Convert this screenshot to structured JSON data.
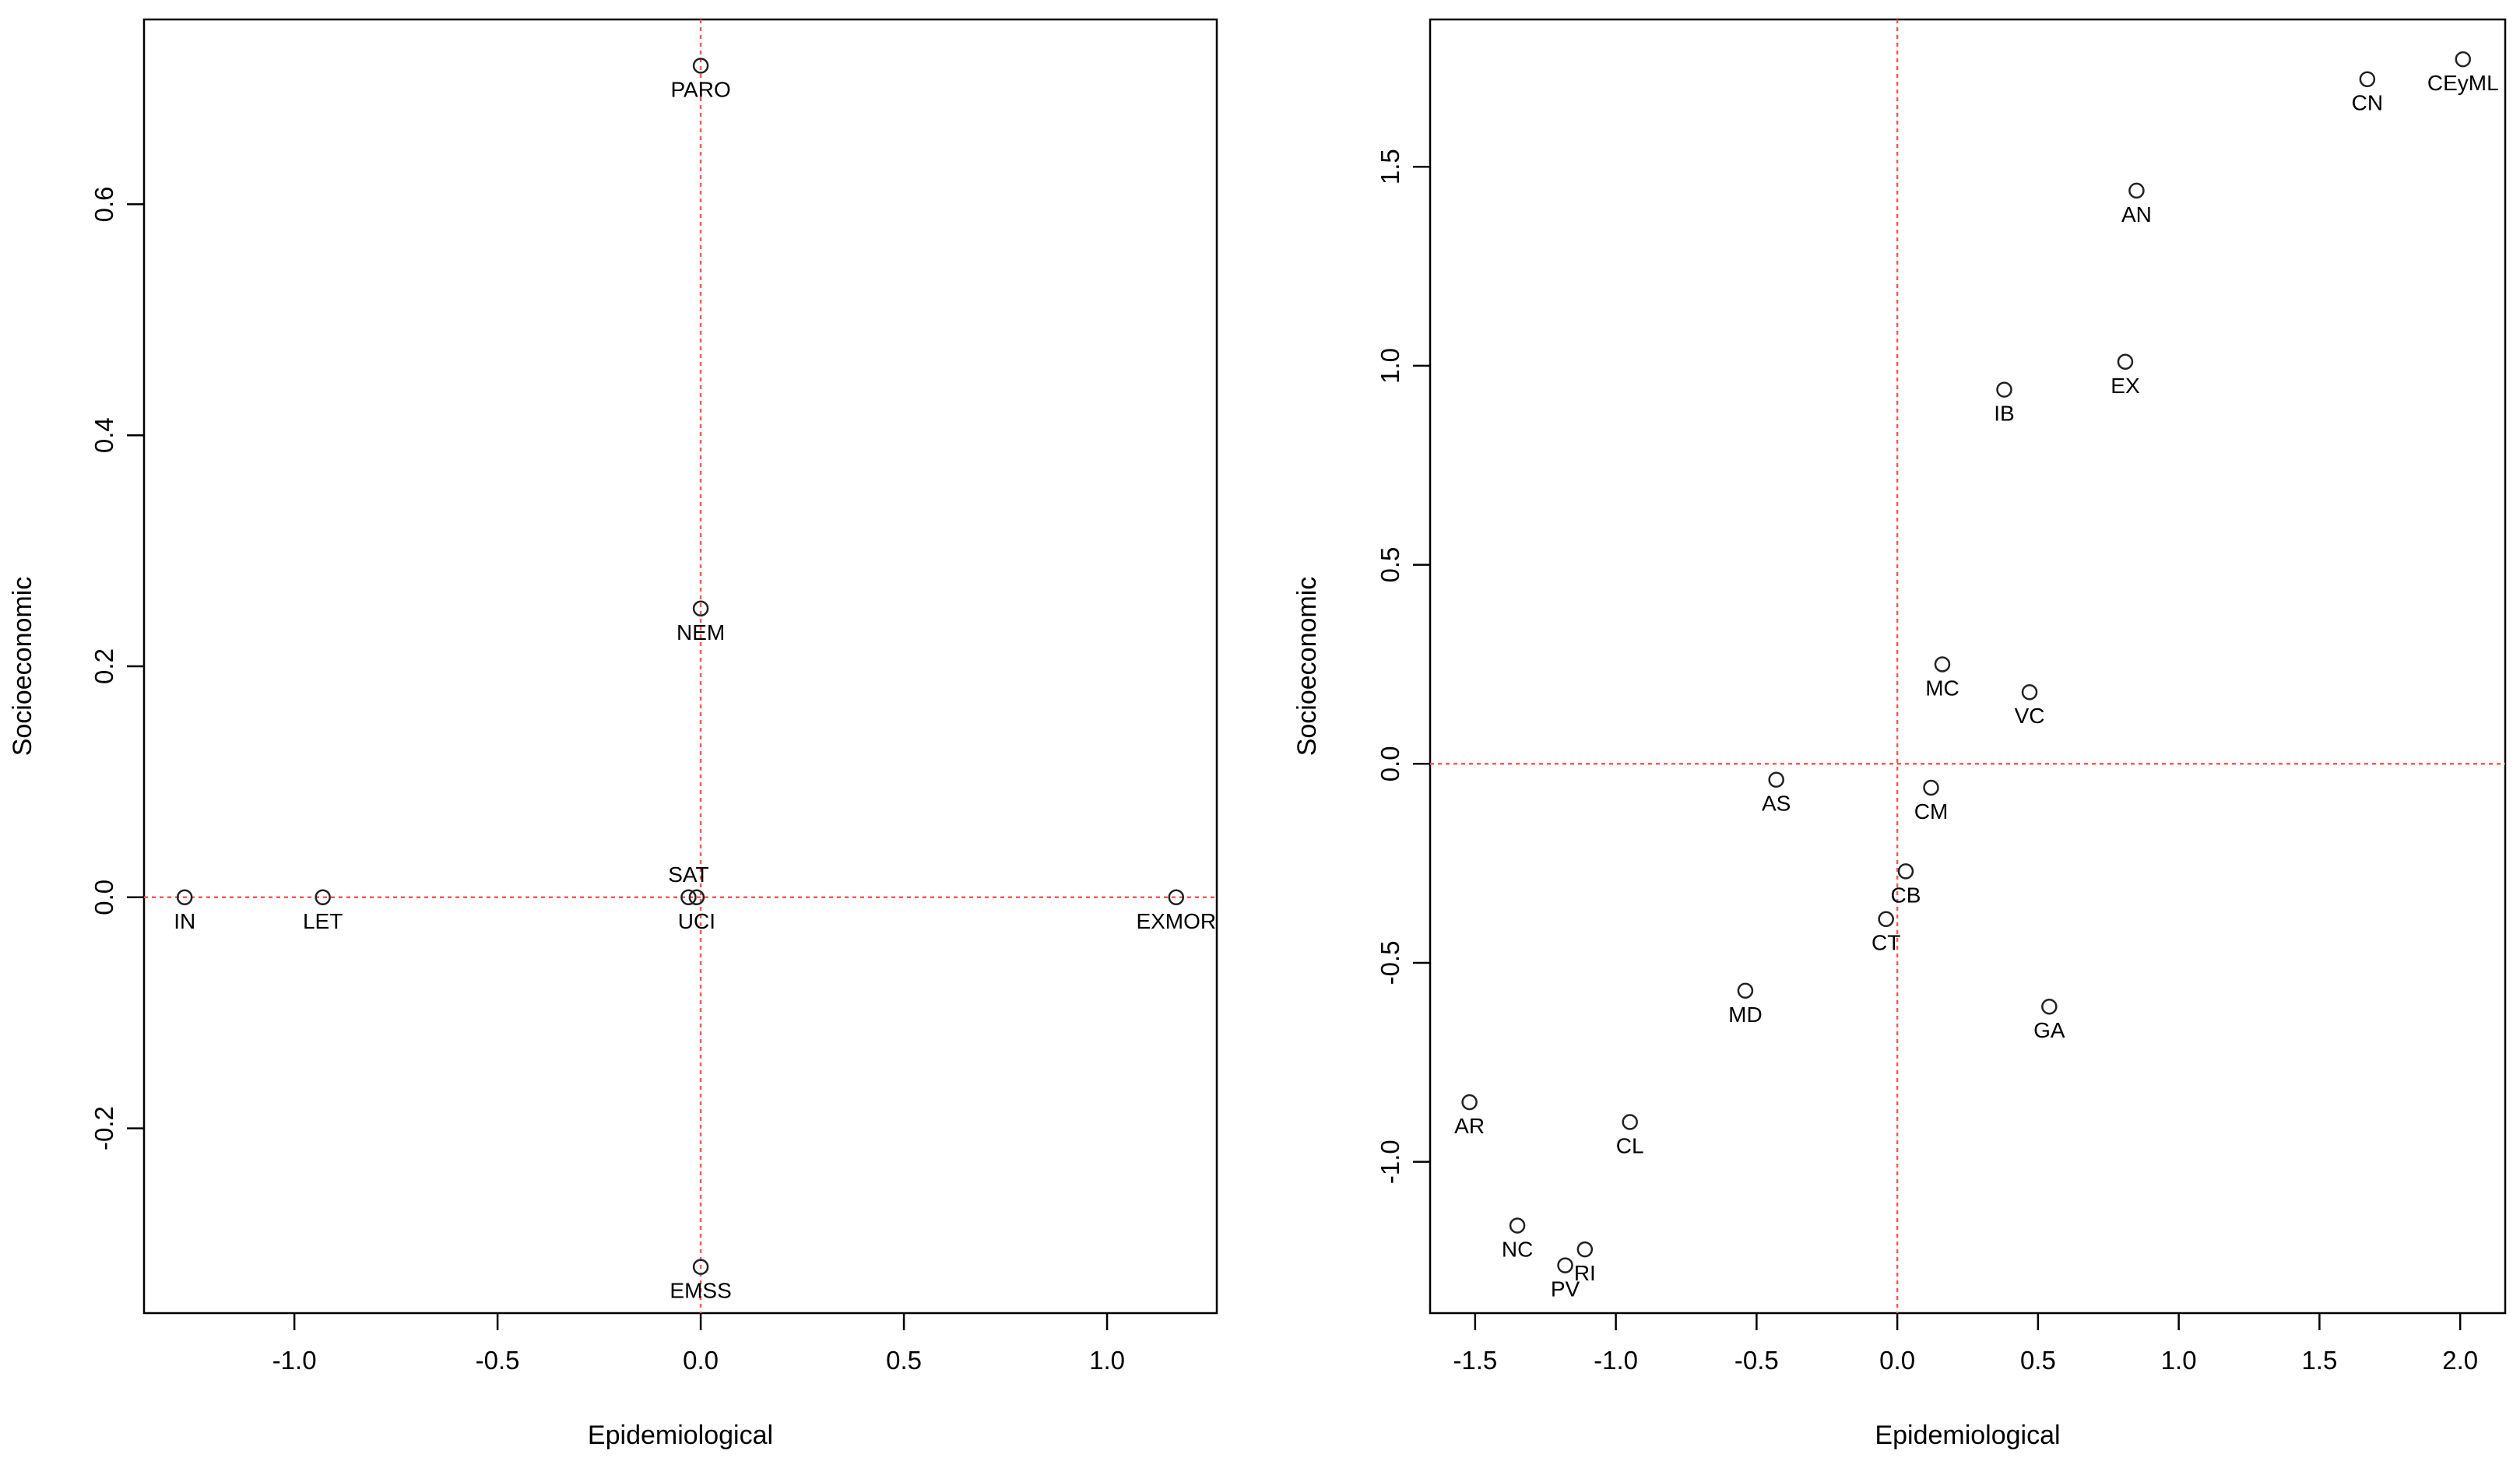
{
  "chart_data": [
    {
      "type": "scatter",
      "xlabel": "Epidemiological",
      "ylabel": "Socioeconomic",
      "xlim": [
        -1.37,
        1.27
      ],
      "ylim": [
        -0.36,
        0.76
      ],
      "xticks": [
        -1.0,
        -0.5,
        0.0,
        0.5,
        1.0
      ],
      "yticks": [
        -0.2,
        0.0,
        0.2,
        0.4,
        0.6
      ],
      "xtick_labels": [
        "-1.0",
        "-0.5",
        "0.0",
        "0.5",
        "1.0"
      ],
      "ytick_labels": [
        "-0.2",
        "0.0",
        "0.2",
        "0.4",
        "0.6"
      ],
      "reference_lines": {
        "x": 0,
        "y": 0
      },
      "points": [
        {
          "label": "PARO",
          "x": 0.0,
          "y": 0.72
        },
        {
          "label": "NEM",
          "x": 0.0,
          "y": 0.25
        },
        {
          "label": "SAT",
          "x": -0.03,
          "y": 0.0,
          "label_pos": "above"
        },
        {
          "label": "UCI",
          "x": -0.01,
          "y": 0.0
        },
        {
          "label": "IN",
          "x": -1.27,
          "y": 0.0
        },
        {
          "label": "LET",
          "x": -0.93,
          "y": 0.0
        },
        {
          "label": "EXMOR",
          "x": 1.17,
          "y": 0.0
        },
        {
          "label": "EMSS",
          "x": 0.0,
          "y": -0.32
        }
      ]
    },
    {
      "type": "scatter",
      "xlabel": "Epidemiological",
      "ylabel": "Socioeconomic",
      "xlim": [
        -1.66,
        2.16
      ],
      "ylim": [
        -1.38,
        1.87
      ],
      "xticks": [
        -1.5,
        -1.0,
        -0.5,
        0.0,
        0.5,
        1.0,
        1.5,
        2.0
      ],
      "yticks": [
        -1.0,
        -0.5,
        0.0,
        0.5,
        1.0,
        1.5
      ],
      "xtick_labels": [
        "-1.5",
        "-1.0",
        "-0.5",
        "0.0",
        "0.5",
        "1.0",
        "1.5",
        "2.0"
      ],
      "ytick_labels": [
        "-1.0",
        "-0.5",
        "0.0",
        "0.5",
        "1.0",
        "1.5"
      ],
      "reference_lines": {
        "x": 0,
        "y": 0
      },
      "points": [
        {
          "label": "CEyML",
          "x": 2.01,
          "y": 1.77
        },
        {
          "label": "CN",
          "x": 1.67,
          "y": 1.72
        },
        {
          "label": "AN",
          "x": 0.85,
          "y": 1.44
        },
        {
          "label": "EX",
          "x": 0.81,
          "y": 1.01
        },
        {
          "label": "IB",
          "x": 0.38,
          "y": 0.94
        },
        {
          "label": "MC",
          "x": 0.16,
          "y": 0.25
        },
        {
          "label": "VC",
          "x": 0.47,
          "y": 0.18
        },
        {
          "label": "AS",
          "x": -0.43,
          "y": -0.04
        },
        {
          "label": "CM",
          "x": 0.12,
          "y": -0.06
        },
        {
          "label": "CB",
          "x": 0.03,
          "y": -0.27
        },
        {
          "label": "CT",
          "x": -0.04,
          "y": -0.39
        },
        {
          "label": "MD",
          "x": -0.54,
          "y": -0.57
        },
        {
          "label": "GA",
          "x": 0.54,
          "y": -0.61
        },
        {
          "label": "AR",
          "x": -1.52,
          "y": -0.85
        },
        {
          "label": "CL",
          "x": -0.95,
          "y": -0.9
        },
        {
          "label": "NC",
          "x": -1.35,
          "y": -1.16
        },
        {
          "label": "RI",
          "x": -1.11,
          "y": -1.22
        },
        {
          "label": "PV",
          "x": -1.18,
          "y": -1.26
        }
      ]
    }
  ]
}
